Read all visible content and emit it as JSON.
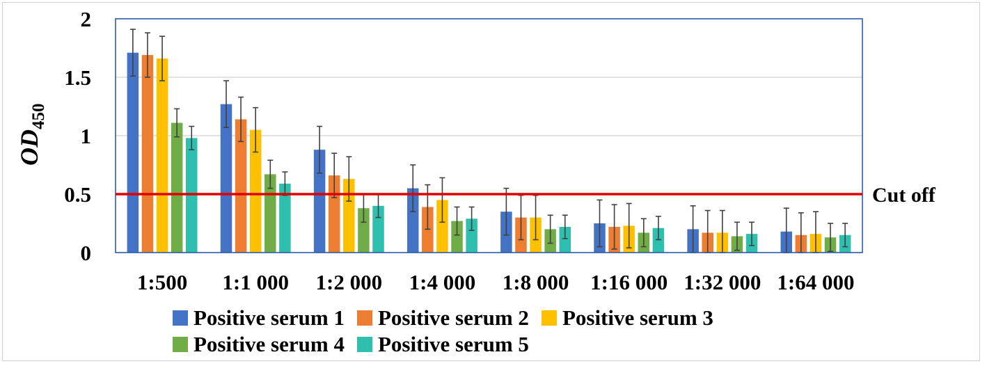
{
  "chart_data": {
    "type": "bar",
    "categories": [
      "1:500",
      "1:1 000",
      "1:2 000",
      "1:4 000",
      "1:8 000",
      "1:16 000",
      "1:32 000",
      "1:64 000"
    ],
    "series": [
      {
        "name": "Positive serum 1",
        "color": "#4472C4",
        "values": [
          1.71,
          1.27,
          0.88,
          0.55,
          0.35,
          0.25,
          0.2,
          0.18
        ],
        "errors": [
          0.2,
          0.2,
          0.2,
          0.2,
          0.2,
          0.2,
          0.2,
          0.2
        ]
      },
      {
        "name": "Positive serum 2",
        "color": "#ED7D31",
        "values": [
          1.69,
          1.14,
          0.66,
          0.39,
          0.3,
          0.22,
          0.17,
          0.15
        ],
        "errors": [
          0.19,
          0.19,
          0.19,
          0.19,
          0.19,
          0.19,
          0.19,
          0.19
        ]
      },
      {
        "name": "Positive serum 3",
        "color": "#FFC000",
        "values": [
          1.66,
          1.05,
          0.63,
          0.45,
          0.3,
          0.23,
          0.17,
          0.16
        ],
        "errors": [
          0.19,
          0.19,
          0.19,
          0.19,
          0.19,
          0.19,
          0.19,
          0.19
        ]
      },
      {
        "name": "Positive serum 4",
        "color": "#70AD47",
        "values": [
          1.11,
          0.67,
          0.38,
          0.27,
          0.2,
          0.17,
          0.14,
          0.13
        ],
        "errors": [
          0.12,
          0.12,
          0.12,
          0.12,
          0.12,
          0.12,
          0.12,
          0.12
        ]
      },
      {
        "name": "Positive serum 5",
        "color": "#2EBFAF",
        "values": [
          0.98,
          0.59,
          0.4,
          0.29,
          0.22,
          0.21,
          0.16,
          0.15
        ],
        "errors": [
          0.1,
          0.1,
          0.1,
          0.1,
          0.1,
          0.1,
          0.1,
          0.1
        ]
      }
    ],
    "ylabel_main": "OD",
    "ylabel_sub": "450",
    "ylim": [
      0,
      2
    ],
    "yticks": [
      0,
      0.5,
      1,
      1.5,
      2
    ],
    "ytick_labels": [
      "0",
      "0.5",
      "1",
      "1.5",
      "2"
    ],
    "grid": true,
    "cutoff": {
      "value": 0.5,
      "label": "Cut off",
      "color": "#E00000"
    },
    "legend_position": "bottom",
    "axis_color": "#2E5AAC",
    "grid_color": "#D9D9D9",
    "error_color": "#404040"
  }
}
